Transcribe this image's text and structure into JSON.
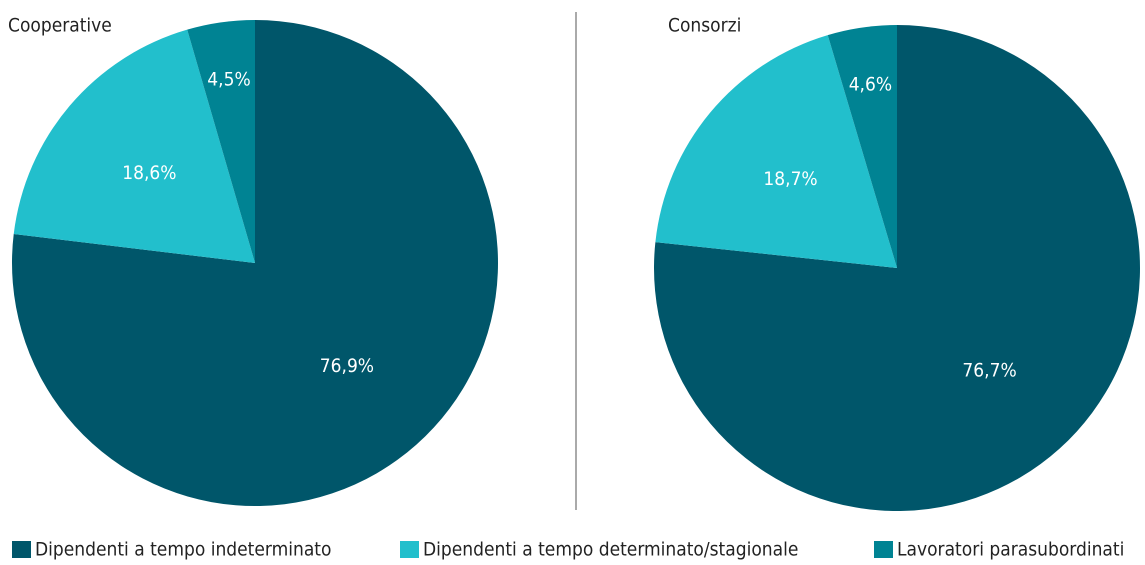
{
  "legend": {
    "labels": [
      "Dipendenti a tempo indeterminato",
      "Dipendenti a tempo determinato/stagionale",
      "Lavoratori parasubordinati"
    ],
    "colors": [
      "#00566a",
      "#22bfcc",
      "#008393"
    ]
  },
  "chart_data": [
    {
      "type": "pie",
      "title": "Cooperative",
      "values": [
        76.9,
        18.6,
        4.5
      ],
      "value_labels": [
        "76,9%",
        "18,6%",
        "4,5%"
      ]
    },
    {
      "type": "pie",
      "title": "Consorzi",
      "values": [
        76.7,
        18.7,
        4.6
      ],
      "value_labels": [
        "76,7%",
        "18,7%",
        "4,6%"
      ]
    }
  ]
}
